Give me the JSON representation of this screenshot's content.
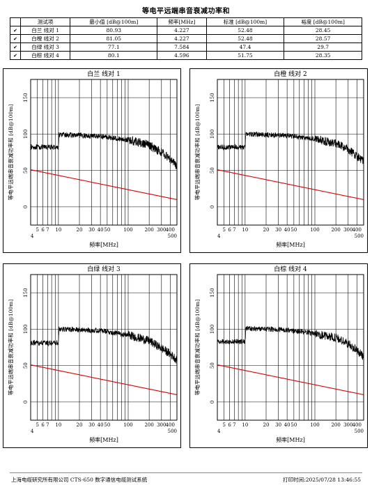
{
  "title": "等电平远端串音衰减功率和",
  "table": {
    "headers": [
      "测试项",
      "最小值 [dB@100m]",
      "频率[MHz]",
      "标准 [dB@100m]",
      "裕度 [dB@100m]"
    ],
    "rows": [
      {
        "check": "✔",
        "name": "白兰 线对 1",
        "min": "80.93",
        "freq": "4.227",
        "std": "52.48",
        "margin": "28.45"
      },
      {
        "check": "✔",
        "name": "白橙 线对 2",
        "min": "81.05",
        "freq": "4.227",
        "std": "52.48",
        "margin": "28.57"
      },
      {
        "check": "✔",
        "name": "白绿 线对 3",
        "min": "77.1",
        "freq": "7.584",
        "std": "47.4",
        "margin": "29.7"
      },
      {
        "check": "✔",
        "name": "白棕 线对 4",
        "min": "80.1",
        "freq": "4.596",
        "std": "51.75",
        "margin": "28.35"
      }
    ]
  },
  "charts_common": {
    "ylabel": "等电平远端串音衰减功率和 [dB@100m]",
    "xlabel": "频率[MHz]",
    "x_ticks_top": [
      "5",
      "6",
      "7",
      "10",
      "20",
      "30",
      "40",
      "50",
      "100",
      "200",
      "300",
      "400"
    ],
    "x_ticks_bottom": [
      "4",
      "500"
    ],
    "y_ticks": [
      "0",
      "50",
      "100",
      "150"
    ]
  },
  "chart_data": [
    {
      "type": "line",
      "title": "白兰 线对 1",
      "x_range": [
        4,
        500
      ],
      "y_range": [
        -25,
        175
      ],
      "log_x": true,
      "series": [
        {
          "values_x": [
            4,
            10,
            10.2,
            40,
            100,
            200,
            300,
            400,
            500
          ],
          "values_y": [
            82,
            82,
            99,
            97,
            92,
            85,
            75,
            66,
            55
          ]
        },
        {
          "values_x": [
            4,
            500
          ],
          "values_y": [
            51,
            10
          ],
          "color": "#dd0000"
        }
      ]
    },
    {
      "type": "line",
      "title": "白橙 线对 2",
      "x_range": [
        4,
        500
      ],
      "y_range": [
        -25,
        175
      ],
      "log_x": true,
      "series": [
        {
          "values_x": [
            4,
            10,
            10.2,
            40,
            100,
            200,
            300,
            400,
            500
          ],
          "values_y": [
            82,
            82,
            100,
            98,
            93,
            87,
            79,
            70,
            62
          ]
        },
        {
          "values_x": [
            4,
            500
          ],
          "values_y": [
            51,
            10
          ],
          "color": "#dd0000"
        }
      ]
    },
    {
      "type": "line",
      "title": "白绿 线对 3",
      "x_range": [
        4,
        500
      ],
      "y_range": [
        -25,
        175
      ],
      "log_x": true,
      "series": [
        {
          "values_x": [
            4,
            10,
            10.2,
            40,
            100,
            200,
            300,
            400,
            500
          ],
          "values_y": [
            81,
            81,
            100,
            98,
            92,
            84,
            74,
            66,
            58
          ]
        },
        {
          "values_x": [
            4,
            500
          ],
          "values_y": [
            51,
            10
          ],
          "color": "#dd0000"
        }
      ]
    },
    {
      "type": "line",
      "title": "白棕 线对 4",
      "x_range": [
        4,
        500
      ],
      "y_range": [
        -25,
        175
      ],
      "log_x": true,
      "series": [
        {
          "values_x": [
            4,
            10,
            10.2,
            40,
            100,
            200,
            300,
            400,
            500
          ],
          "values_y": [
            83,
            83,
            101,
            99,
            94,
            88,
            80,
            71,
            62
          ]
        },
        {
          "values_x": [
            4,
            500
          ],
          "values_y": [
            51,
            10
          ],
          "color": "#dd0000"
        }
      ]
    }
  ],
  "footer": {
    "left": "上海电缆研究所有限公司 CTS-650 数字通信电缆测试系统",
    "right": "打印时间:2025/07/28 13:46:55"
  },
  "colors": {
    "trace": "#000000",
    "limit": "#dd0000",
    "grid": "#000000"
  }
}
